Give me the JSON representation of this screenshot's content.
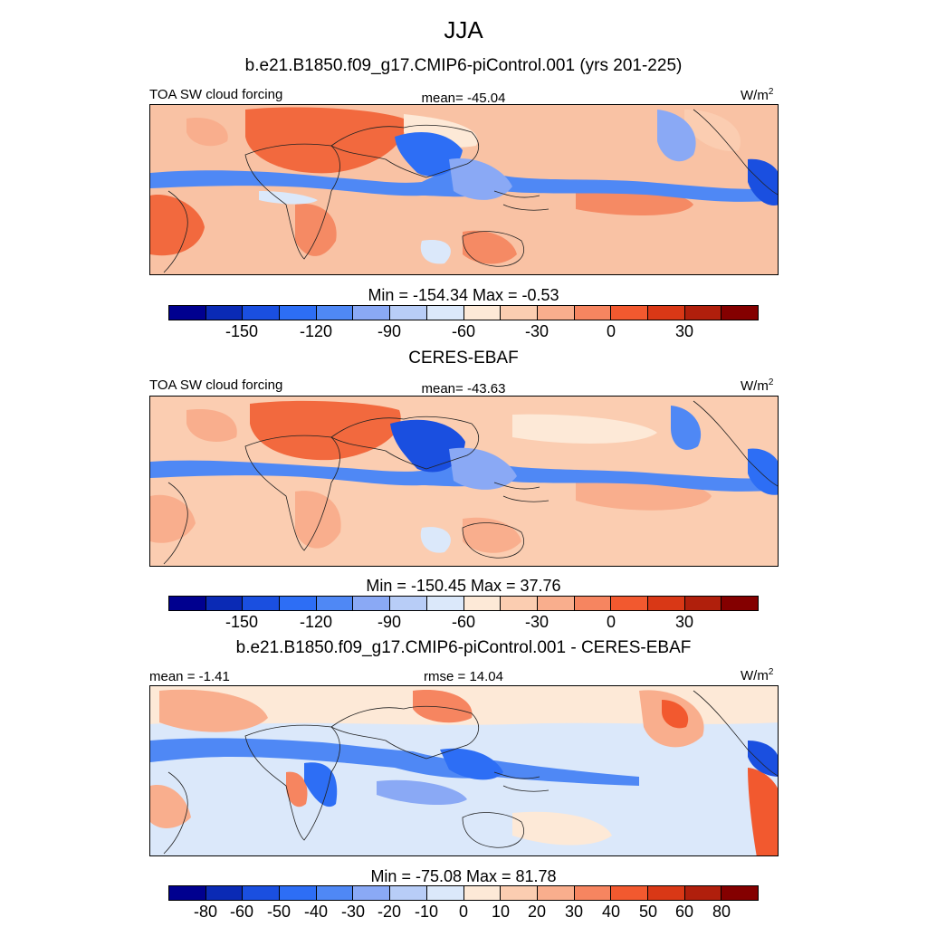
{
  "title": "JJA",
  "units_base": "W/m",
  "units_exp": "2",
  "panels": [
    {
      "title": "b.e21.B1850.f09_g17.CMIP6-piControl.001 (yrs 201-225)",
      "left_label": "TOA SW cloud forcing",
      "center_label": "mean= -45.04",
      "minmax": "Min = -154.34 Max =  -0.53",
      "ticks": [
        "-150",
        "-120",
        "-90",
        "-60",
        "-30",
        "0",
        "30"
      ]
    },
    {
      "title": "CERES-EBAF",
      "left_label": "TOA SW cloud forcing",
      "center_label": "mean= -43.63",
      "minmax": "Min = -150.45 Max =  37.76",
      "ticks": [
        "-150",
        "-120",
        "-90",
        "-60",
        "-30",
        "0",
        "30"
      ]
    },
    {
      "title": "b.e21.B1850.f09_g17.CMIP6-piControl.001 - CERES-EBAF",
      "left_label": "mean =  -1.41",
      "center_label": "rmse =  14.04",
      "minmax": "Min = -75.08 Max =  81.78",
      "ticks": [
        "-80",
        "-60",
        "-50",
        "-40",
        "-30",
        "-20",
        "-10",
        "0",
        "10",
        "20",
        "30",
        "40",
        "50",
        "60",
        "80"
      ]
    }
  ],
  "colorbar_colors": [
    "#00008f",
    "#0a2ab5",
    "#1a4fe0",
    "#2d6ef5",
    "#4f88f5",
    "#8aa9f5",
    "#b8cdf7",
    "#dbe8fa",
    "#fde9d7",
    "#fbcdb1",
    "#f9ae8d",
    "#f68560",
    "#f2592f",
    "#d93816",
    "#b01f0c",
    "#840000"
  ]
}
